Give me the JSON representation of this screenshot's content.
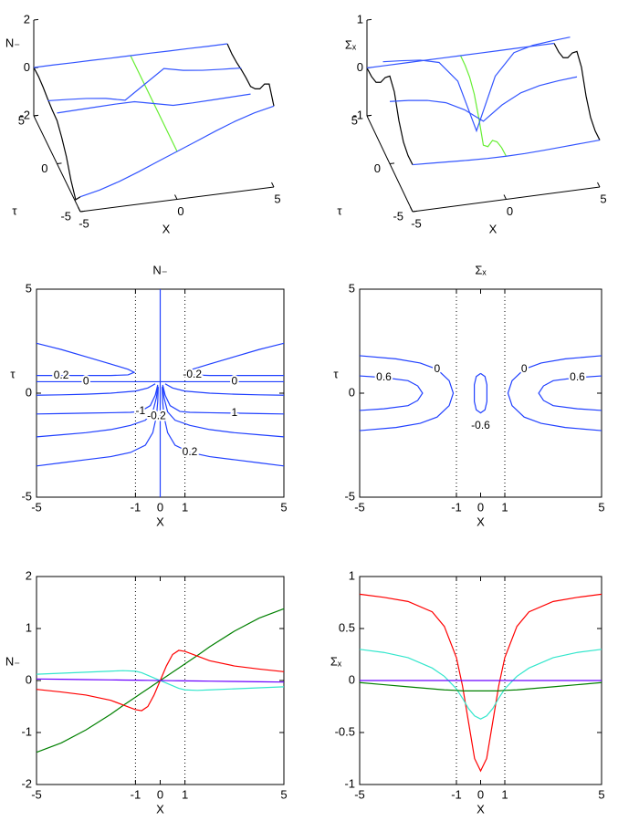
{
  "chart_data": [
    {
      "type": "surface3d",
      "zlabel": "N₋",
      "ylabel": "τ",
      "xlabel": "X",
      "xlim": [
        -5,
        5
      ],
      "ylim": [
        -5,
        5
      ],
      "zlim": [
        -2,
        2
      ],
      "xticks": [
        -5,
        0,
        5
      ],
      "yticks": [
        -5,
        0,
        5
      ],
      "zticks": [
        -2,
        0,
        2
      ],
      "x": [
        -5,
        -4,
        -3,
        -2,
        -1,
        0,
        1,
        2,
        3,
        4,
        5
      ],
      "tau": [
        -5,
        -4,
        -3,
        -2,
        -1,
        0,
        1,
        2,
        3,
        4,
        5
      ],
      "lines_x": [
        {
          "tau": 5,
          "color": "#3355ff",
          "values": [
            0.02,
            0.02,
            0.01,
            0.01,
            0,
            0,
            0,
            -0.01,
            -0.01,
            -0.02,
            -0.02
          ]
        },
        {
          "tau": 2,
          "color": "#3355ff",
          "values": [
            -0.17,
            -0.22,
            -0.28,
            -0.38,
            -0.56,
            0,
            0.56,
            0.38,
            0.28,
            0.22,
            0.17
          ]
        },
        {
          "tau": 0,
          "color": "#3355ff",
          "values": [
            0.12,
            0.14,
            0.16,
            0.18,
            0.18,
            0,
            -0.18,
            -0.18,
            -0.16,
            -0.14,
            -0.12
          ]
        },
        {
          "tau": -5,
          "color": "#3355ff",
          "values": [
            -1.38,
            -1.2,
            -0.95,
            -0.65,
            -0.32,
            0,
            0.32,
            0.65,
            0.95,
            1.2,
            1.38
          ]
        }
      ],
      "lines_tau": [
        {
          "x": 0,
          "color": "#66ee33",
          "values": [
            0,
            0,
            0,
            0,
            0,
            0,
            0,
            0,
            0,
            0,
            0
          ]
        },
        {
          "x": -5,
          "color": "#000000",
          "values": [
            -1.38,
            -1.9,
            -1.5,
            -0.9,
            -0.5,
            -0.2,
            -0.17,
            -0.1,
            0,
            0.05,
            0.02
          ]
        },
        {
          "x": 5,
          "color": "#000000",
          "values": [
            1.38,
            1.9,
            1.5,
            0.9,
            0.5,
            0.2,
            0.17,
            0.1,
            0,
            -0.05,
            -0.02
          ]
        }
      ]
    },
    {
      "type": "surface3d",
      "zlabel": "Σₓ",
      "ylabel": "τ",
      "xlabel": "X",
      "xlim": [
        -5,
        5
      ],
      "ylim": [
        -5,
        5
      ],
      "zlim": [
        -1,
        1
      ],
      "xticks": [
        -5,
        0,
        5
      ],
      "yticks": [
        -5,
        0,
        5
      ],
      "zticks": [
        -1,
        0,
        1
      ],
      "x": [
        -5,
        -4,
        -3,
        -2,
        -1,
        0,
        1,
        2,
        3,
        4,
        5
      ],
      "tau": [
        -5,
        -4,
        -3,
        -2,
        -1,
        0,
        1,
        2,
        3,
        4,
        5
      ],
      "lines_x": [
        {
          "tau": 5,
          "color": "#3355ff",
          "values": [
            0,
            0,
            0,
            0,
            0,
            0,
            0,
            0,
            0,
            0,
            0
          ]
        },
        {
          "tau": 1.5,
          "color": "#3355ff",
          "values": [
            0.83,
            0.8,
            0.76,
            0.66,
            0.22,
            -0.87,
            0.22,
            0.66,
            0.76,
            0.8,
            0.83
          ]
        },
        {
          "tau": 0,
          "color": "#3355ff",
          "values": [
            0.3,
            0.27,
            0.22,
            0.12,
            -0.08,
            -0.37,
            -0.08,
            0.12,
            0.22,
            0.27,
            0.3
          ]
        },
        {
          "tau": -5,
          "color": "#3355ff",
          "values": [
            -0.02,
            -0.04,
            -0.06,
            -0.08,
            -0.095,
            -0.1,
            -0.095,
            -0.08,
            -0.06,
            -0.04,
            -0.02
          ]
        }
      ],
      "lines_tau": [
        {
          "x": 0,
          "color": "#66ee33",
          "values": [
            -0.1,
            -0.12,
            -0.2,
            -0.37,
            -0.7,
            -0.87,
            -0.5,
            -0.2,
            -0.05,
            0,
            0
          ]
        },
        {
          "x": -5,
          "color": "#000000",
          "values": [
            -0.02,
            -0.03,
            0.05,
            0.3,
            0.7,
            0.83,
            0.6,
            0.3,
            0.1,
            0.02,
            0
          ]
        },
        {
          "x": 5,
          "color": "#000000",
          "values": [
            -0.02,
            -0.03,
            0.05,
            0.3,
            0.7,
            0.83,
            0.6,
            0.3,
            0.1,
            0.02,
            0
          ]
        }
      ]
    },
    {
      "type": "contour",
      "title": "N₋",
      "xlabel": "X",
      "ylabel": "τ",
      "color": "#2040ff",
      "xlim": [
        -5,
        5
      ],
      "ylim": [
        -5,
        5
      ],
      "xticks": [
        -5,
        -1,
        0,
        1,
        5
      ],
      "yticks": [
        -5,
        0,
        5
      ],
      "vlines": [
        -1,
        1
      ],
      "lines": [
        {
          "level": 0,
          "x": [
            -5,
            -3,
            0,
            3,
            5
          ],
          "y": [
            0.55,
            0.55,
            0.55,
            0.55,
            0.55
          ]
        },
        {
          "x": [
            0,
            0
          ],
          "y": [
            -5,
            5
          ]
        },
        {
          "level": 0.2,
          "x": [
            -5,
            -4,
            -3,
            -2,
            -1.3,
            -1.05,
            -1.3,
            -2,
            -3,
            -4,
            -5
          ],
          "y": [
            2.4,
            2.1,
            1.75,
            1.4,
            1.15,
            1.0,
            0.88,
            0.85,
            0.85,
            0.85,
            0.85
          ]
        },
        {
          "level": -0.2,
          "x": [
            5,
            4,
            3,
            2,
            1.3,
            1.05,
            1.3,
            2,
            3,
            4,
            5
          ],
          "y": [
            2.4,
            2.1,
            1.75,
            1.4,
            1.15,
            1.0,
            0.88,
            0.85,
            0.85,
            0.85,
            0.85
          ]
        },
        {
          "level": -0.2,
          "x": [
            -5,
            -4,
            -3,
            -2,
            -1.2,
            -0.6,
            -0.3,
            -0.15,
            -0.1,
            -0.08
          ],
          "y": [
            -3.5,
            -3.35,
            -3.2,
            -3.05,
            -2.85,
            -2.5,
            -1.9,
            -1.1,
            -0.4,
            0.3
          ]
        },
        {
          "x": [
            -5,
            -4,
            -3,
            -2,
            -1.2,
            -0.6,
            -0.3,
            -0.15,
            -0.1
          ],
          "y": [
            -2.1,
            -2.0,
            -1.9,
            -1.75,
            -1.55,
            -1.3,
            -0.9,
            -0.2,
            0.35
          ]
        },
        {
          "level": -1,
          "x": [
            -5,
            -4,
            -3,
            -2,
            -1.2,
            -0.8,
            -0.4,
            -0.2,
            -0.1
          ],
          "y": [
            -1,
            -0.98,
            -0.96,
            -0.94,
            -0.92,
            -0.88,
            -0.6,
            -0.1,
            0.4
          ]
        },
        {
          "x": [
            -5,
            -4,
            -3,
            -2,
            -1,
            -0.5,
            -0.2
          ],
          "y": [
            -0.1,
            -0.08,
            -0.05,
            0,
            0.1,
            0.25,
            0.45
          ]
        },
        {
          "level": 0.2,
          "x": [
            5,
            4,
            3,
            2,
            1.2,
            0.6,
            0.3,
            0.15,
            0.1,
            0.08
          ],
          "y": [
            -3.5,
            -3.35,
            -3.2,
            -3.05,
            -2.85,
            -2.5,
            -1.9,
            -1.1,
            -0.4,
            0.3
          ]
        },
        {
          "x": [
            5,
            4,
            3,
            2,
            1.2,
            0.6,
            0.3,
            0.15,
            0.1
          ],
          "y": [
            -2.1,
            -2.0,
            -1.9,
            -1.75,
            -1.55,
            -1.3,
            -0.9,
            -0.2,
            0.35
          ]
        },
        {
          "level": 1,
          "x": [
            5,
            4,
            3,
            2,
            1.2,
            0.8,
            0.4,
            0.2,
            0.1
          ],
          "y": [
            -1,
            -0.98,
            -0.96,
            -0.94,
            -0.92,
            -0.88,
            -0.6,
            -0.1,
            0.4
          ]
        },
        {
          "x": [
            5,
            4,
            3,
            2,
            1,
            0.5,
            0.2
          ],
          "y": [
            -0.1,
            -0.08,
            -0.05,
            0,
            0.1,
            0.25,
            0.45
          ]
        }
      ]
    },
    {
      "type": "contour",
      "title": "Σₓ",
      "xlabel": "X",
      "ylabel": "τ",
      "color": "#2040ff",
      "xlim": [
        -5,
        5
      ],
      "ylim": [
        -5,
        5
      ],
      "xticks": [
        -5,
        -1,
        0,
        1,
        5
      ],
      "yticks": [
        -5,
        0,
        5
      ],
      "vlines": [
        -1,
        1
      ],
      "lines": [
        {
          "level": 0,
          "x": [
            -5,
            -3.5,
            -2.5,
            -1.8,
            -1.3,
            -1.13,
            -1.3,
            -1.8,
            -2.5,
            -3.5,
            -5
          ],
          "y": [
            1.8,
            1.65,
            1.45,
            1.15,
            0.6,
            0,
            -0.6,
            -1.15,
            -1.45,
            -1.65,
            -1.8
          ]
        },
        {
          "level": 0.6,
          "x": [
            -5,
            -4,
            -3,
            -2.6,
            -2.4,
            -2.6,
            -3,
            -4,
            -5
          ],
          "y": [
            0.83,
            0.75,
            0.6,
            0.35,
            0,
            -0.35,
            -0.6,
            -0.75,
            -0.83
          ]
        },
        {
          "level": 0,
          "x": [
            5,
            3.5,
            2.5,
            1.8,
            1.3,
            1.13,
            1.3,
            1.8,
            2.5,
            3.5,
            5
          ],
          "y": [
            1.8,
            1.65,
            1.45,
            1.15,
            0.6,
            0,
            -0.6,
            -1.15,
            -1.45,
            -1.65,
            -1.8
          ]
        },
        {
          "level": 0.6,
          "x": [
            5,
            4,
            3,
            2.6,
            2.4,
            2.6,
            3,
            4,
            5
          ],
          "y": [
            0.83,
            0.75,
            0.6,
            0.35,
            0,
            -0.35,
            -0.6,
            -0.75,
            -0.83
          ]
        },
        {
          "level": -0.6,
          "x": [
            0,
            0.18,
            0.26,
            0.26,
            0.18,
            0,
            -0.18,
            -0.26,
            -0.26,
            -0.18,
            0
          ],
          "y": [
            0.95,
            0.8,
            0.4,
            -0.4,
            -0.8,
            -0.95,
            -0.8,
            -0.4,
            0.4,
            0.8,
            0.95
          ]
        }
      ]
    },
    {
      "type": "line",
      "xlabel": "X",
      "ylabel": "N₋",
      "xlim": [
        -5,
        5
      ],
      "ylim": [
        -2,
        2
      ],
      "xticks": [
        -5,
        -1,
        0,
        1,
        5
      ],
      "yticks": [
        -2,
        -1,
        0,
        1,
        2
      ],
      "vlines": [
        -1,
        1
      ],
      "x": [
        -5,
        -4,
        -3,
        -2,
        -1.5,
        -1,
        -0.75,
        -0.5,
        -0.25,
        0,
        0.25,
        0.5,
        0.75,
        1,
        1.5,
        2,
        3,
        4,
        5
      ],
      "series": [
        {
          "color": "#008000",
          "values": [
            -1.38,
            -1.2,
            -0.95,
            -0.65,
            -0.48,
            -0.32,
            -0.24,
            -0.16,
            -0.08,
            0,
            0.08,
            0.16,
            0.24,
            0.32,
            0.48,
            0.65,
            0.95,
            1.2,
            1.38
          ]
        },
        {
          "color": "#ff0000",
          "values": [
            -0.17,
            -0.22,
            -0.28,
            -0.38,
            -0.47,
            -0.56,
            -0.58,
            -0.5,
            -0.28,
            0,
            0.28,
            0.5,
            0.58,
            0.56,
            0.47,
            0.38,
            0.28,
            0.22,
            0.17
          ]
        },
        {
          "color": "#33e6cc",
          "values": [
            0.12,
            0.14,
            0.16,
            0.18,
            0.19,
            0.18,
            0.15,
            0.1,
            0.05,
            0,
            -0.05,
            -0.1,
            -0.15,
            -0.18,
            -0.19,
            -0.18,
            -0.16,
            -0.14,
            -0.12
          ]
        },
        {
          "color": "#6a00ff",
          "values": [
            0.03,
            0.024,
            0.018,
            0.012,
            0.009,
            0.006,
            0.0045,
            0.003,
            0.0015,
            0,
            -0.0015,
            -0.003,
            -0.0045,
            -0.006,
            -0.009,
            -0.012,
            -0.018,
            -0.024,
            -0.03
          ]
        }
      ]
    },
    {
      "type": "line",
      "xlabel": "X",
      "ylabel": "Σₓ",
      "xlim": [
        -5,
        5
      ],
      "ylim": [
        -1,
        1
      ],
      "xticks": [
        -5,
        -1,
        0,
        1,
        5
      ],
      "yticks": [
        -1,
        -0.5,
        0,
        0.5,
        1
      ],
      "vlines": [
        -1,
        1
      ],
      "x": [
        -5,
        -4,
        -3,
        -2,
        -1.5,
        -1,
        -0.75,
        -0.5,
        -0.25,
        0,
        0.25,
        0.5,
        0.75,
        1,
        1.5,
        2,
        3,
        4,
        5
      ],
      "series": [
        {
          "color": "#ff0000",
          "values": [
            0.83,
            0.8,
            0.76,
            0.66,
            0.52,
            0.22,
            -0.05,
            -0.4,
            -0.75,
            -0.87,
            -0.75,
            -0.4,
            -0.05,
            0.22,
            0.52,
            0.66,
            0.76,
            0.8,
            0.83
          ]
        },
        {
          "color": "#33e6cc",
          "values": [
            0.3,
            0.27,
            0.22,
            0.12,
            0.04,
            -0.08,
            -0.17,
            -0.27,
            -0.34,
            -0.37,
            -0.34,
            -0.27,
            -0.17,
            -0.08,
            0.04,
            0.12,
            0.22,
            0.27,
            0.3
          ]
        },
        {
          "color": "#008000",
          "values": [
            -0.02,
            -0.04,
            -0.06,
            -0.08,
            -0.09,
            -0.095,
            -0.1,
            -0.1,
            -0.1,
            -0.1,
            -0.1,
            -0.1,
            -0.1,
            -0.095,
            -0.09,
            -0.08,
            -0.06,
            -0.04,
            -0.02
          ]
        },
        {
          "color": "#6a00ff",
          "values": [
            0,
            0,
            0,
            0,
            0,
            0,
            0,
            0,
            0,
            0,
            0,
            0,
            0,
            0,
            0,
            0,
            0,
            0,
            0
          ]
        }
      ]
    }
  ]
}
